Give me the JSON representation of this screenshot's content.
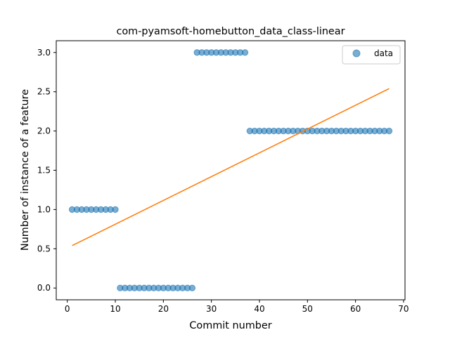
{
  "chart_data": {
    "type": "scatter",
    "title": "com-pyamsoft-homebutton_data_class-linear",
    "xlabel": "Commit number",
    "ylabel": "Number of instance of a feature",
    "xlim": [
      -2.3,
      70.3
    ],
    "ylim": [
      -0.15,
      3.15
    ],
    "xticks": [
      0,
      10,
      20,
      30,
      40,
      50,
      60,
      70
    ],
    "xtick_labels": [
      "0",
      "10",
      "20",
      "30",
      "40",
      "50",
      "60",
      "70"
    ],
    "yticks": [
      0.0,
      0.5,
      1.0,
      1.5,
      2.0,
      2.5,
      3.0
    ],
    "ytick_labels": [
      "0.0",
      "0.5",
      "1.0",
      "1.5",
      "2.0",
      "2.5",
      "3.0"
    ],
    "grid": false,
    "legend": {
      "position": "top-right",
      "entries": [
        "data"
      ]
    },
    "series": [
      {
        "name": "data",
        "kind": "scatter",
        "color": "#1f77b4",
        "x": [
          1,
          2,
          3,
          4,
          5,
          6,
          7,
          8,
          9,
          10,
          11,
          12,
          13,
          14,
          15,
          16,
          17,
          18,
          19,
          20,
          21,
          22,
          23,
          24,
          25,
          26,
          27,
          28,
          29,
          30,
          31,
          32,
          33,
          34,
          35,
          36,
          37,
          38,
          39,
          40,
          41,
          42,
          43,
          44,
          45,
          46,
          47,
          48,
          49,
          50,
          51,
          52,
          53,
          54,
          55,
          56,
          57,
          58,
          59,
          60,
          61,
          62,
          63,
          64,
          65,
          66,
          67
        ],
        "y": [
          1,
          1,
          1,
          1,
          1,
          1,
          1,
          1,
          1,
          1,
          0,
          0,
          0,
          0,
          0,
          0,
          0,
          0,
          0,
          0,
          0,
          0,
          0,
          0,
          0,
          0,
          3,
          3,
          3,
          3,
          3,
          3,
          3,
          3,
          3,
          3,
          3,
          2,
          2,
          2,
          2,
          2,
          2,
          2,
          2,
          2,
          2,
          2,
          2,
          2,
          2,
          2,
          2,
          2,
          2,
          2,
          2,
          2,
          2,
          2,
          2,
          2,
          2,
          2,
          2,
          2,
          2
        ]
      },
      {
        "kind": "line",
        "color": "#ff7f0e",
        "x": [
          1,
          67
        ],
        "y": [
          0.54,
          2.54
        ]
      }
    ]
  }
}
